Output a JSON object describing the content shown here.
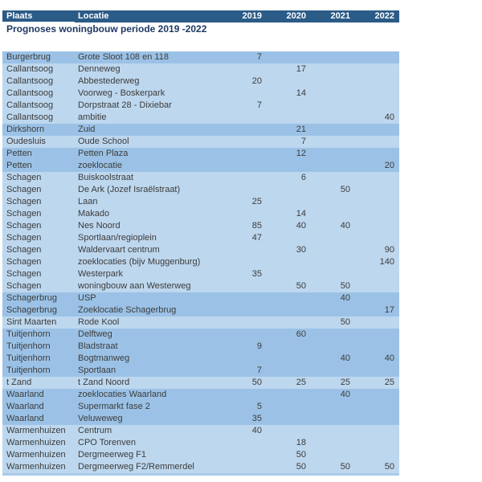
{
  "title": "Prognoses woningbouw periode 2019 -2022",
  "colors": {
    "header_bg": "#2B5B87",
    "header_text": "#FFFFFF",
    "row_light": "#BDD7EE",
    "row_medium": "#9BC2E6",
    "title_text": "#1F3864",
    "cell_text": "#3C3C3C",
    "bottom_edge": "#A9CCE9",
    "page_bg": "#FFFFFF"
  },
  "table": {
    "columns": [
      {
        "key": "plaats",
        "label": "Plaats"
      },
      {
        "key": "locatie",
        "label": "Locatie"
      },
      {
        "key": "y2019",
        "label": "2019"
      },
      {
        "key": "y2020",
        "label": "2020"
      },
      {
        "key": "y2021",
        "label": "2021"
      },
      {
        "key": "y2022",
        "label": "2022"
      }
    ],
    "rows": [
      {
        "plaats": "Burgerbrug",
        "locatie": "Grote Sloot 108 en 118",
        "y2019": "7",
        "y2020": "",
        "y2021": "",
        "y2022": "",
        "shade": "medium"
      },
      {
        "plaats": "Callantsoog",
        "locatie": "Denneweg",
        "y2019": "",
        "y2020": "17",
        "y2021": "",
        "y2022": "",
        "shade": "light"
      },
      {
        "plaats": "Callantsoog",
        "locatie": "Abbestederweg",
        "y2019": "20",
        "y2020": "",
        "y2021": "",
        "y2022": "",
        "shade": "light"
      },
      {
        "plaats": "Callantsoog",
        "locatie": "Voorweg - Boskerpark",
        "y2019": "",
        "y2020": "14",
        "y2021": "",
        "y2022": "",
        "shade": "light"
      },
      {
        "plaats": "Callantsoog",
        "locatie": "Dorpstraat 28 - Dixiebar",
        "y2019": "7",
        "y2020": "",
        "y2021": "",
        "y2022": "",
        "shade": "light"
      },
      {
        "plaats": "Callantsoog",
        "locatie": "ambitie",
        "y2019": "",
        "y2020": "",
        "y2021": "",
        "y2022": "40",
        "shade": "light"
      },
      {
        "plaats": "Dirkshorn",
        "locatie": "Zuid",
        "y2019": "",
        "y2020": "21",
        "y2021": "",
        "y2022": "",
        "shade": "medium"
      },
      {
        "plaats": "Oudesluis",
        "locatie": "Oude School",
        "y2019": "",
        "y2020": "7",
        "y2021": "",
        "y2022": "",
        "shade": "light"
      },
      {
        "plaats": "Petten",
        "locatie": "Petten Plaza",
        "y2019": "",
        "y2020": "12",
        "y2021": "",
        "y2022": "",
        "shade": "medium"
      },
      {
        "plaats": "Petten",
        "locatie": "zoeklocatie",
        "y2019": "",
        "y2020": "",
        "y2021": "",
        "y2022": "20",
        "shade": "medium"
      },
      {
        "plaats": "Schagen",
        "locatie": "Buiskoolstraat",
        "y2019": "",
        "y2020": "6",
        "y2021": "",
        "y2022": "",
        "shade": "light"
      },
      {
        "plaats": "Schagen",
        "locatie": "De Ark (Jozef Israëlstraat)",
        "y2019": "",
        "y2020": "",
        "y2021": "50",
        "y2022": "",
        "shade": "light"
      },
      {
        "plaats": "Schagen",
        "locatie": "Laan",
        "y2019": "25",
        "y2020": "",
        "y2021": "",
        "y2022": "",
        "shade": "light"
      },
      {
        "plaats": "Schagen",
        "locatie": "Makado",
        "y2019": "",
        "y2020": "14",
        "y2021": "",
        "y2022": "",
        "shade": "light"
      },
      {
        "plaats": "Schagen",
        "locatie": "Nes Noord",
        "y2019": "85",
        "y2020": "40",
        "y2021": "40",
        "y2022": "",
        "shade": "light"
      },
      {
        "plaats": "Schagen",
        "locatie": "Sportlaan/regioplein",
        "y2019": "47",
        "y2020": "",
        "y2021": "",
        "y2022": "",
        "shade": "light"
      },
      {
        "plaats": "Schagen",
        "locatie": "Waldervaart centrum",
        "y2019": "",
        "y2020": "30",
        "y2021": "",
        "y2022": "90",
        "shade": "light"
      },
      {
        "plaats": "Schagen",
        "locatie": "zoeklocaties (bijv Muggenburg)",
        "y2019": "",
        "y2020": "",
        "y2021": "",
        "y2022": "140",
        "shade": "light"
      },
      {
        "plaats": "Schagen",
        "locatie": "Westerpark",
        "y2019": "35",
        "y2020": "",
        "y2021": "",
        "y2022": "",
        "shade": "light"
      },
      {
        "plaats": "Schagen",
        "locatie": "woningbouw aan Westerweg",
        "y2019": "",
        "y2020": "50",
        "y2021": "50",
        "y2022": "",
        "shade": "light"
      },
      {
        "plaats": "Schagerbrug",
        "locatie": "USP",
        "y2019": "",
        "y2020": "",
        "y2021": "40",
        "y2022": "",
        "shade": "medium"
      },
      {
        "plaats": "Schagerbrug",
        "locatie": "Zoeklocatie Schagerbrug",
        "y2019": "",
        "y2020": "",
        "y2021": "",
        "y2022": "17",
        "shade": "medium"
      },
      {
        "plaats": "Sint Maarten",
        "locatie": "Rode Kool",
        "y2019": "",
        "y2020": "",
        "y2021": "50",
        "y2022": "",
        "shade": "light"
      },
      {
        "plaats": "Tuitjenhorn",
        "locatie": "Delftweg",
        "y2019": "",
        "y2020": "60",
        "y2021": "",
        "y2022": "",
        "shade": "medium"
      },
      {
        "plaats": "Tuitjenhorn",
        "locatie": "Bladstraat",
        "y2019": "9",
        "y2020": "",
        "y2021": "",
        "y2022": "",
        "shade": "medium"
      },
      {
        "plaats": "Tuitjenhorn",
        "locatie": "Bogtmanweg",
        "y2019": "",
        "y2020": "",
        "y2021": "40",
        "y2022": "40",
        "shade": "medium"
      },
      {
        "plaats": "Tuitjenhorn",
        "locatie": "Sportlaan",
        "y2019": "7",
        "y2020": "",
        "y2021": "",
        "y2022": "",
        "shade": "medium"
      },
      {
        "plaats": "t Zand",
        "locatie": "t Zand Noord",
        "y2019": "50",
        "y2020": "25",
        "y2021": "25",
        "y2022": "25",
        "shade": "light"
      },
      {
        "plaats": "Waarland",
        "locatie": "zoeklocaties Waarland",
        "y2019": "",
        "y2020": "",
        "y2021": "40",
        "y2022": "",
        "shade": "medium"
      },
      {
        "plaats": "Waarland",
        "locatie": "Supermarkt fase 2",
        "y2019": "5",
        "y2020": "",
        "y2021": "",
        "y2022": "",
        "shade": "medium"
      },
      {
        "plaats": "Waarland",
        "locatie": "Veluweweg",
        "y2019": "35",
        "y2020": "",
        "y2021": "",
        "y2022": "",
        "shade": "medium"
      },
      {
        "plaats": "Warmenhuizen",
        "locatie": "Centrum",
        "y2019": "40",
        "y2020": "",
        "y2021": "",
        "y2022": "",
        "shade": "light"
      },
      {
        "plaats": "Warmenhuizen",
        "locatie": "CPO Torenven",
        "y2019": "",
        "y2020": "18",
        "y2021": "",
        "y2022": "",
        "shade": "light"
      },
      {
        "plaats": "Warmenhuizen",
        "locatie": "Dergmeerweg F1",
        "y2019": "",
        "y2020": "50",
        "y2021": "",
        "y2022": "",
        "shade": "light"
      },
      {
        "plaats": "Warmenhuizen",
        "locatie": "Dergmeerweg F2/Remmerdel",
        "y2019": "",
        "y2020": "50",
        "y2021": "50",
        "y2022": "50",
        "shade": "light"
      }
    ]
  }
}
